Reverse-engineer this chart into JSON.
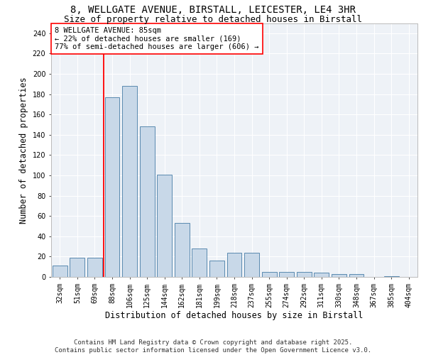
{
  "title_line1": "8, WELLGATE AVENUE, BIRSTALL, LEICESTER, LE4 3HR",
  "title_line2": "Size of property relative to detached houses in Birstall",
  "xlabel": "Distribution of detached houses by size in Birstall",
  "ylabel": "Number of detached properties",
  "categories": [
    "32sqm",
    "51sqm",
    "69sqm",
    "88sqm",
    "106sqm",
    "125sqm",
    "144sqm",
    "162sqm",
    "181sqm",
    "199sqm",
    "218sqm",
    "237sqm",
    "255sqm",
    "274sqm",
    "292sqm",
    "311sqm",
    "330sqm",
    "348sqm",
    "367sqm",
    "385sqm",
    "404sqm"
  ],
  "values": [
    11,
    19,
    19,
    177,
    188,
    148,
    101,
    53,
    28,
    16,
    24,
    24,
    5,
    5,
    5,
    4,
    3,
    3,
    0,
    1,
    0
  ],
  "bar_color": "#c8d8e8",
  "bar_edge_color": "#5a8ab0",
  "vline_x": 2.5,
  "vline_color": "red",
  "annotation_text": "8 WELLGATE AVENUE: 85sqm\n← 22% of detached houses are smaller (169)\n77% of semi-detached houses are larger (606) →",
  "ylim": [
    0,
    250
  ],
  "yticks": [
    0,
    20,
    40,
    60,
    80,
    100,
    120,
    140,
    160,
    180,
    200,
    220,
    240
  ],
  "background_color": "#eef2f7",
  "grid_color": "#ffffff",
  "footer_text": "Contains HM Land Registry data © Crown copyright and database right 2025.\nContains public sector information licensed under the Open Government Licence v3.0.",
  "title_fontsize": 10,
  "subtitle_fontsize": 9,
  "axis_label_fontsize": 8.5,
  "tick_fontsize": 7,
  "annotation_fontsize": 7.5,
  "footer_fontsize": 6.5
}
